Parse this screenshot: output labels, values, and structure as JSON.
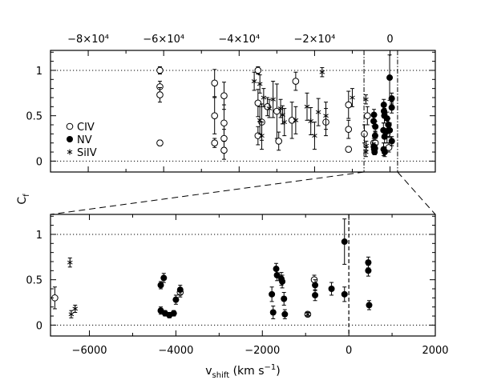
{
  "chart_data": [
    {
      "type": "scatter",
      "panel": "top",
      "title": "",
      "xlabel": "",
      "ylabel": "C_f",
      "xlim": [
        -90000,
        12000
      ],
      "ylim": [
        -0.12,
        1.22
      ],
      "xticks": [
        -80000,
        -60000,
        -40000,
        -20000,
        0
      ],
      "xtick_labels": [
        "−8×10⁴",
        "−6×10⁴",
        "−4×10⁴",
        "−2×10⁴",
        "0"
      ],
      "xtick_position": "top",
      "yticks": [
        0,
        0.5,
        1
      ],
      "ytick_labels": [
        "0",
        "0.5",
        "1"
      ],
      "grid": false,
      "reference_lines_y": [
        0,
        1
      ],
      "zoom_window_x": [
        -6900,
        2000
      ],
      "legend": {
        "location": "left",
        "entries": [
          {
            "label": "CIV",
            "marker": "open-circle"
          },
          {
            "label": "NV",
            "marker": "filled-circle"
          },
          {
            "label": "SiIV",
            "marker": "asterisk"
          }
        ]
      },
      "series": [
        {
          "name": "CIV",
          "marker": "open-circle",
          "points": [
            {
              "x": -61000,
              "y": 1.0,
              "err": 0.04
            },
            {
              "x": -61000,
              "y": 0.82,
              "err": 0.06
            },
            {
              "x": -61000,
              "y": 0.73,
              "err": 0.08
            },
            {
              "x": -61000,
              "y": 0.2,
              "err": 0.03
            },
            {
              "x": -46500,
              "y": 0.86,
              "err": 0.15
            },
            {
              "x": -46500,
              "y": 0.5,
              "err": 0.2
            },
            {
              "x": -46500,
              "y": 0.2,
              "err": 0.05
            },
            {
              "x": -44000,
              "y": 0.72,
              "err": 0.15
            },
            {
              "x": -44000,
              "y": 0.42,
              "err": 0.2
            },
            {
              "x": -44000,
              "y": 0.25,
              "err": 0.1
            },
            {
              "x": -44000,
              "y": 0.12,
              "err": 0.1
            },
            {
              "x": -35000,
              "y": 1.0,
              "err": 0.04
            },
            {
              "x": -35000,
              "y": 0.64,
              "err": 0.15
            },
            {
              "x": -35000,
              "y": 0.28,
              "err": 0.1
            },
            {
              "x": -34000,
              "y": 0.43,
              "err": 0.2
            },
            {
              "x": -32500,
              "y": 0.6,
              "err": 0.1
            },
            {
              "x": -30000,
              "y": 0.55,
              "err": 0.3
            },
            {
              "x": -29500,
              "y": 0.22,
              "err": 0.1
            },
            {
              "x": -26000,
              "y": 0.45,
              "err": 0.2
            },
            {
              "x": -25000,
              "y": 0.88,
              "err": 0.1
            },
            {
              "x": -17000,
              "y": 0.43,
              "err": 0.15
            },
            {
              "x": -11000,
              "y": 0.62,
              "err": 0.15
            },
            {
              "x": -11000,
              "y": 0.35,
              "err": 0.1
            },
            {
              "x": -11000,
              "y": 0.13,
              "err": 0.03
            },
            {
              "x": -6800,
              "y": 0.3,
              "err": 0.1
            },
            {
              "x": -6000,
              "y": 0.5,
              "err": 0.1
            },
            {
              "x": -4300,
              "y": 0.2,
              "err": 0.05
            },
            {
              "x": -3900,
              "y": 0.2,
              "err": 0.05
            },
            {
              "x": -800,
              "y": 0.3,
              "err": 0.1
            },
            {
              "x": -300,
              "y": 0.15,
              "err": 0.05
            }
          ]
        },
        {
          "name": "NV",
          "marker": "filled-circle",
          "points": [
            {
              "x": -4350,
              "y": 0.44,
              "err": 0.05
            },
            {
              "x": -4300,
              "y": 0.16,
              "err": 0.04
            },
            {
              "x": -4250,
              "y": 0.51,
              "err": 0.06
            },
            {
              "x": -4200,
              "y": 0.13,
              "err": 0.03
            },
            {
              "x": -4100,
              "y": 0.1,
              "err": 0.03
            },
            {
              "x": -4000,
              "y": 0.14,
              "err": 0.04
            },
            {
              "x": -3950,
              "y": 0.28,
              "err": 0.05
            },
            {
              "x": -3900,
              "y": 0.38,
              "err": 0.06
            },
            {
              "x": -1750,
              "y": 0.34,
              "err": 0.08
            },
            {
              "x": -1700,
              "y": 0.13,
              "err": 0.07
            },
            {
              "x": -1650,
              "y": 0.62,
              "err": 0.06
            },
            {
              "x": -1600,
              "y": 0.55,
              "err": 0.07
            },
            {
              "x": -1500,
              "y": 0.5,
              "err": 0.08
            },
            {
              "x": -1450,
              "y": 0.27,
              "err": 0.07
            },
            {
              "x": -1400,
              "y": 0.1,
              "err": 0.05
            },
            {
              "x": -800,
              "y": 0.47,
              "err": 0.07
            },
            {
              "x": -750,
              "y": 0.33,
              "err": 0.06
            },
            {
              "x": -400,
              "y": 0.4,
              "err": 0.07
            },
            {
              "x": -100,
              "y": 0.92,
              "err": 0.25
            },
            {
              "x": -80,
              "y": 0.34,
              "err": 0.08
            },
            {
              "x": 450,
              "y": 0.69,
              "err": 0.06
            },
            {
              "x": 450,
              "y": 0.59,
              "err": 0.06
            },
            {
              "x": 470,
              "y": 0.22,
              "err": 0.05
            }
          ]
        },
        {
          "name": "SiIV",
          "marker": "asterisk",
          "points": [
            {
              "x": -36000,
              "y": 0.88,
              "err": 0.1
            },
            {
              "x": -34500,
              "y": 0.85,
              "err": 0.1
            },
            {
              "x": -34500,
              "y": 0.45,
              "err": 0.15
            },
            {
              "x": -34000,
              "y": 0.28,
              "err": 0.15
            },
            {
              "x": -33500,
              "y": 0.7,
              "err": 0.1
            },
            {
              "x": -32000,
              "y": 0.58,
              "err": 0.1
            },
            {
              "x": -31000,
              "y": 0.68,
              "err": 0.2
            },
            {
              "x": -29000,
              "y": 0.58,
              "err": 0.1
            },
            {
              "x": -28500,
              "y": 0.51,
              "err": 0.1
            },
            {
              "x": -28000,
              "y": 0.43,
              "err": 0.15
            },
            {
              "x": -25000,
              "y": 0.45,
              "err": 0.15
            },
            {
              "x": -22000,
              "y": 0.6,
              "err": 0.15
            },
            {
              "x": -21000,
              "y": 0.44,
              "err": 0.15
            },
            {
              "x": -20000,
              "y": 0.28,
              "err": 0.15
            },
            {
              "x": -19000,
              "y": 0.54,
              "err": 0.15
            },
            {
              "x": -18000,
              "y": 0.98,
              "err": 0.05
            },
            {
              "x": -17000,
              "y": 0.5,
              "err": 0.15
            },
            {
              "x": -10000,
              "y": 0.7,
              "err": 0.1
            },
            {
              "x": -6400,
              "y": 0.68,
              "err": 0.05
            },
            {
              "x": -6400,
              "y": 0.1,
              "err": 0.05
            },
            {
              "x": -6300,
              "y": 0.17,
              "err": 0.05
            }
          ]
        }
      ]
    },
    {
      "type": "scatter",
      "panel": "bottom",
      "title": "",
      "xlabel": "v_shift (km s^-1)",
      "ylabel": "C_f",
      "xlim": [
        -6900,
        2000
      ],
      "ylim": [
        -0.12,
        1.22
      ],
      "xticks": [
        -6000,
        -4000,
        -2000,
        0,
        2000
      ],
      "xtick_labels": [
        "−6000",
        "−4000",
        "−2000",
        "0",
        "2000"
      ],
      "yticks": [
        0,
        0.5,
        1
      ],
      "ytick_labels": [
        "0",
        "0.5",
        "1"
      ],
      "grid": false,
      "reference_lines_y": [
        0,
        1
      ],
      "reference_line_x": 0,
      "series": [
        {
          "name": "CIV",
          "marker": "open-circle",
          "points": [
            {
              "x": -6800,
              "y": 0.3,
              "err": 0.12
            },
            {
              "x": -3900,
              "y": 0.36,
              "err": 0.05
            },
            {
              "x": -950,
              "y": 0.12,
              "err": 0.02
            },
            {
              "x": -800,
              "y": 0.5,
              "err": 0.05
            }
          ]
        },
        {
          "name": "NV",
          "marker": "filled-circle",
          "points": [
            {
              "x": -4350,
              "y": 0.44,
              "err": 0.04
            },
            {
              "x": -4350,
              "y": 0.16,
              "err": 0.04
            },
            {
              "x": -4280,
              "y": 0.52,
              "err": 0.05
            },
            {
              "x": -4250,
              "y": 0.13,
              "err": 0.03
            },
            {
              "x": -4150,
              "y": 0.11,
              "err": 0.03
            },
            {
              "x": -4050,
              "y": 0.13,
              "err": 0.03
            },
            {
              "x": -4000,
              "y": 0.28,
              "err": 0.05
            },
            {
              "x": -3900,
              "y": 0.39,
              "err": 0.05
            },
            {
              "x": -1780,
              "y": 0.34,
              "err": 0.08
            },
            {
              "x": -1750,
              "y": 0.14,
              "err": 0.07
            },
            {
              "x": -1680,
              "y": 0.62,
              "err": 0.06
            },
            {
              "x": -1660,
              "y": 0.55,
              "err": 0.06
            },
            {
              "x": -1560,
              "y": 0.51,
              "err": 0.07
            },
            {
              "x": -1540,
              "y": 0.48,
              "err": 0.07
            },
            {
              "x": -1500,
              "y": 0.29,
              "err": 0.07
            },
            {
              "x": -1480,
              "y": 0.12,
              "err": 0.05
            },
            {
              "x": -780,
              "y": 0.44,
              "err": 0.06
            },
            {
              "x": -780,
              "y": 0.33,
              "err": 0.06
            },
            {
              "x": -400,
              "y": 0.4,
              "err": 0.07
            },
            {
              "x": -100,
              "y": 0.92,
              "err": 0.25
            },
            {
              "x": -100,
              "y": 0.34,
              "err": 0.08
            },
            {
              "x": 450,
              "y": 0.69,
              "err": 0.06
            },
            {
              "x": 450,
              "y": 0.6,
              "err": 0.06
            },
            {
              "x": 470,
              "y": 0.22,
              "err": 0.05
            }
          ]
        },
        {
          "name": "SiIV",
          "marker": "asterisk",
          "points": [
            {
              "x": -6450,
              "y": 0.69,
              "err": 0.05
            },
            {
              "x": -6420,
              "y": 0.12,
              "err": 0.04
            },
            {
              "x": -6330,
              "y": 0.18,
              "err": 0.04
            },
            {
              "x": -950,
              "y": 0.12,
              "err": 0.02
            }
          ]
        }
      ]
    }
  ]
}
